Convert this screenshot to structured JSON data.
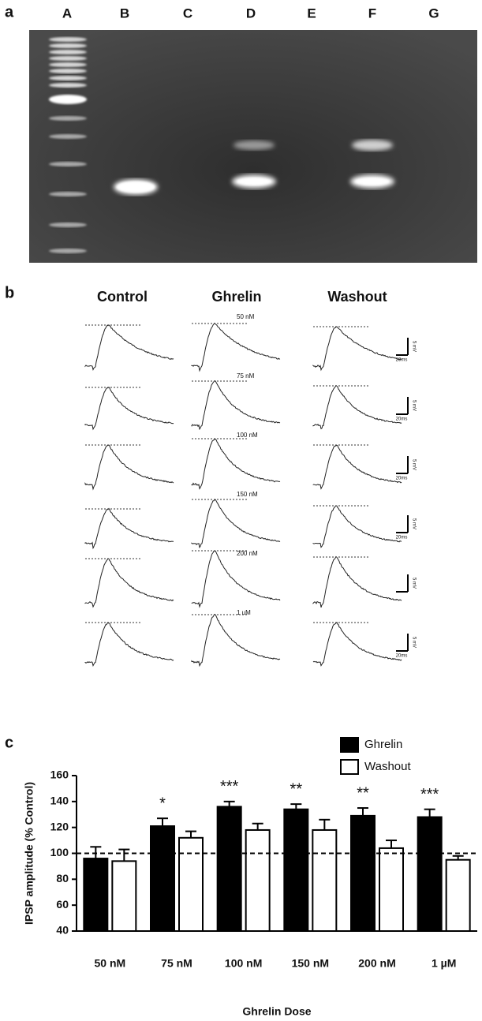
{
  "panel_a": {
    "letter": "a",
    "lanes": [
      "A",
      "B",
      "C",
      "D",
      "E",
      "F",
      "G"
    ]
  },
  "panel_b": {
    "letter": "b",
    "columns": [
      "Control",
      "Ghrelin",
      "Washout"
    ],
    "rows": [
      {
        "dose": "50 nM",
        "mv_label": "5 mV",
        "ms_label": "20ms"
      },
      {
        "dose": "75 nM",
        "mv_label": "5 mV",
        "ms_label": "20ms"
      },
      {
        "dose": "100 nM",
        "mv_label": "5 mV",
        "ms_label": "20ms"
      },
      {
        "dose": "150 nM",
        "mv_label": "5 mV",
        "ms_label": "20ms"
      },
      {
        "dose": "200 nM",
        "mv_label": "5 mV"
      },
      {
        "dose": "1 uM",
        "mv_label": "5 mV",
        "ms_label": "20ms"
      }
    ]
  },
  "panel_c_letter": "c",
  "chart_data": {
    "type": "bar",
    "xlabel": "Ghrelin Dose",
    "ylabel": "IPSP amplitude (% Control)",
    "categories": [
      "50 nM",
      "75 nM",
      "100 nM",
      "150 nM",
      "200 nM",
      "1 µM"
    ],
    "series": [
      {
        "name": "Ghrelin",
        "color": "#000000",
        "values": [
          96,
          121,
          136,
          134,
          129,
          128
        ],
        "errors": [
          9,
          6,
          4,
          4,
          6,
          6
        ]
      },
      {
        "name": "Washout",
        "color": "#ffffff",
        "values": [
          94,
          112,
          118,
          118,
          104,
          95
        ],
        "errors": [
          9,
          5,
          5,
          8,
          6,
          3
        ]
      }
    ],
    "annotations": [
      null,
      "*",
      "***",
      "**",
      "**",
      "***"
    ],
    "reference_line": 100,
    "ylim": [
      40,
      160
    ],
    "yticks": [
      40,
      60,
      80,
      100,
      120,
      140,
      160
    ],
    "legend": "top-right"
  }
}
